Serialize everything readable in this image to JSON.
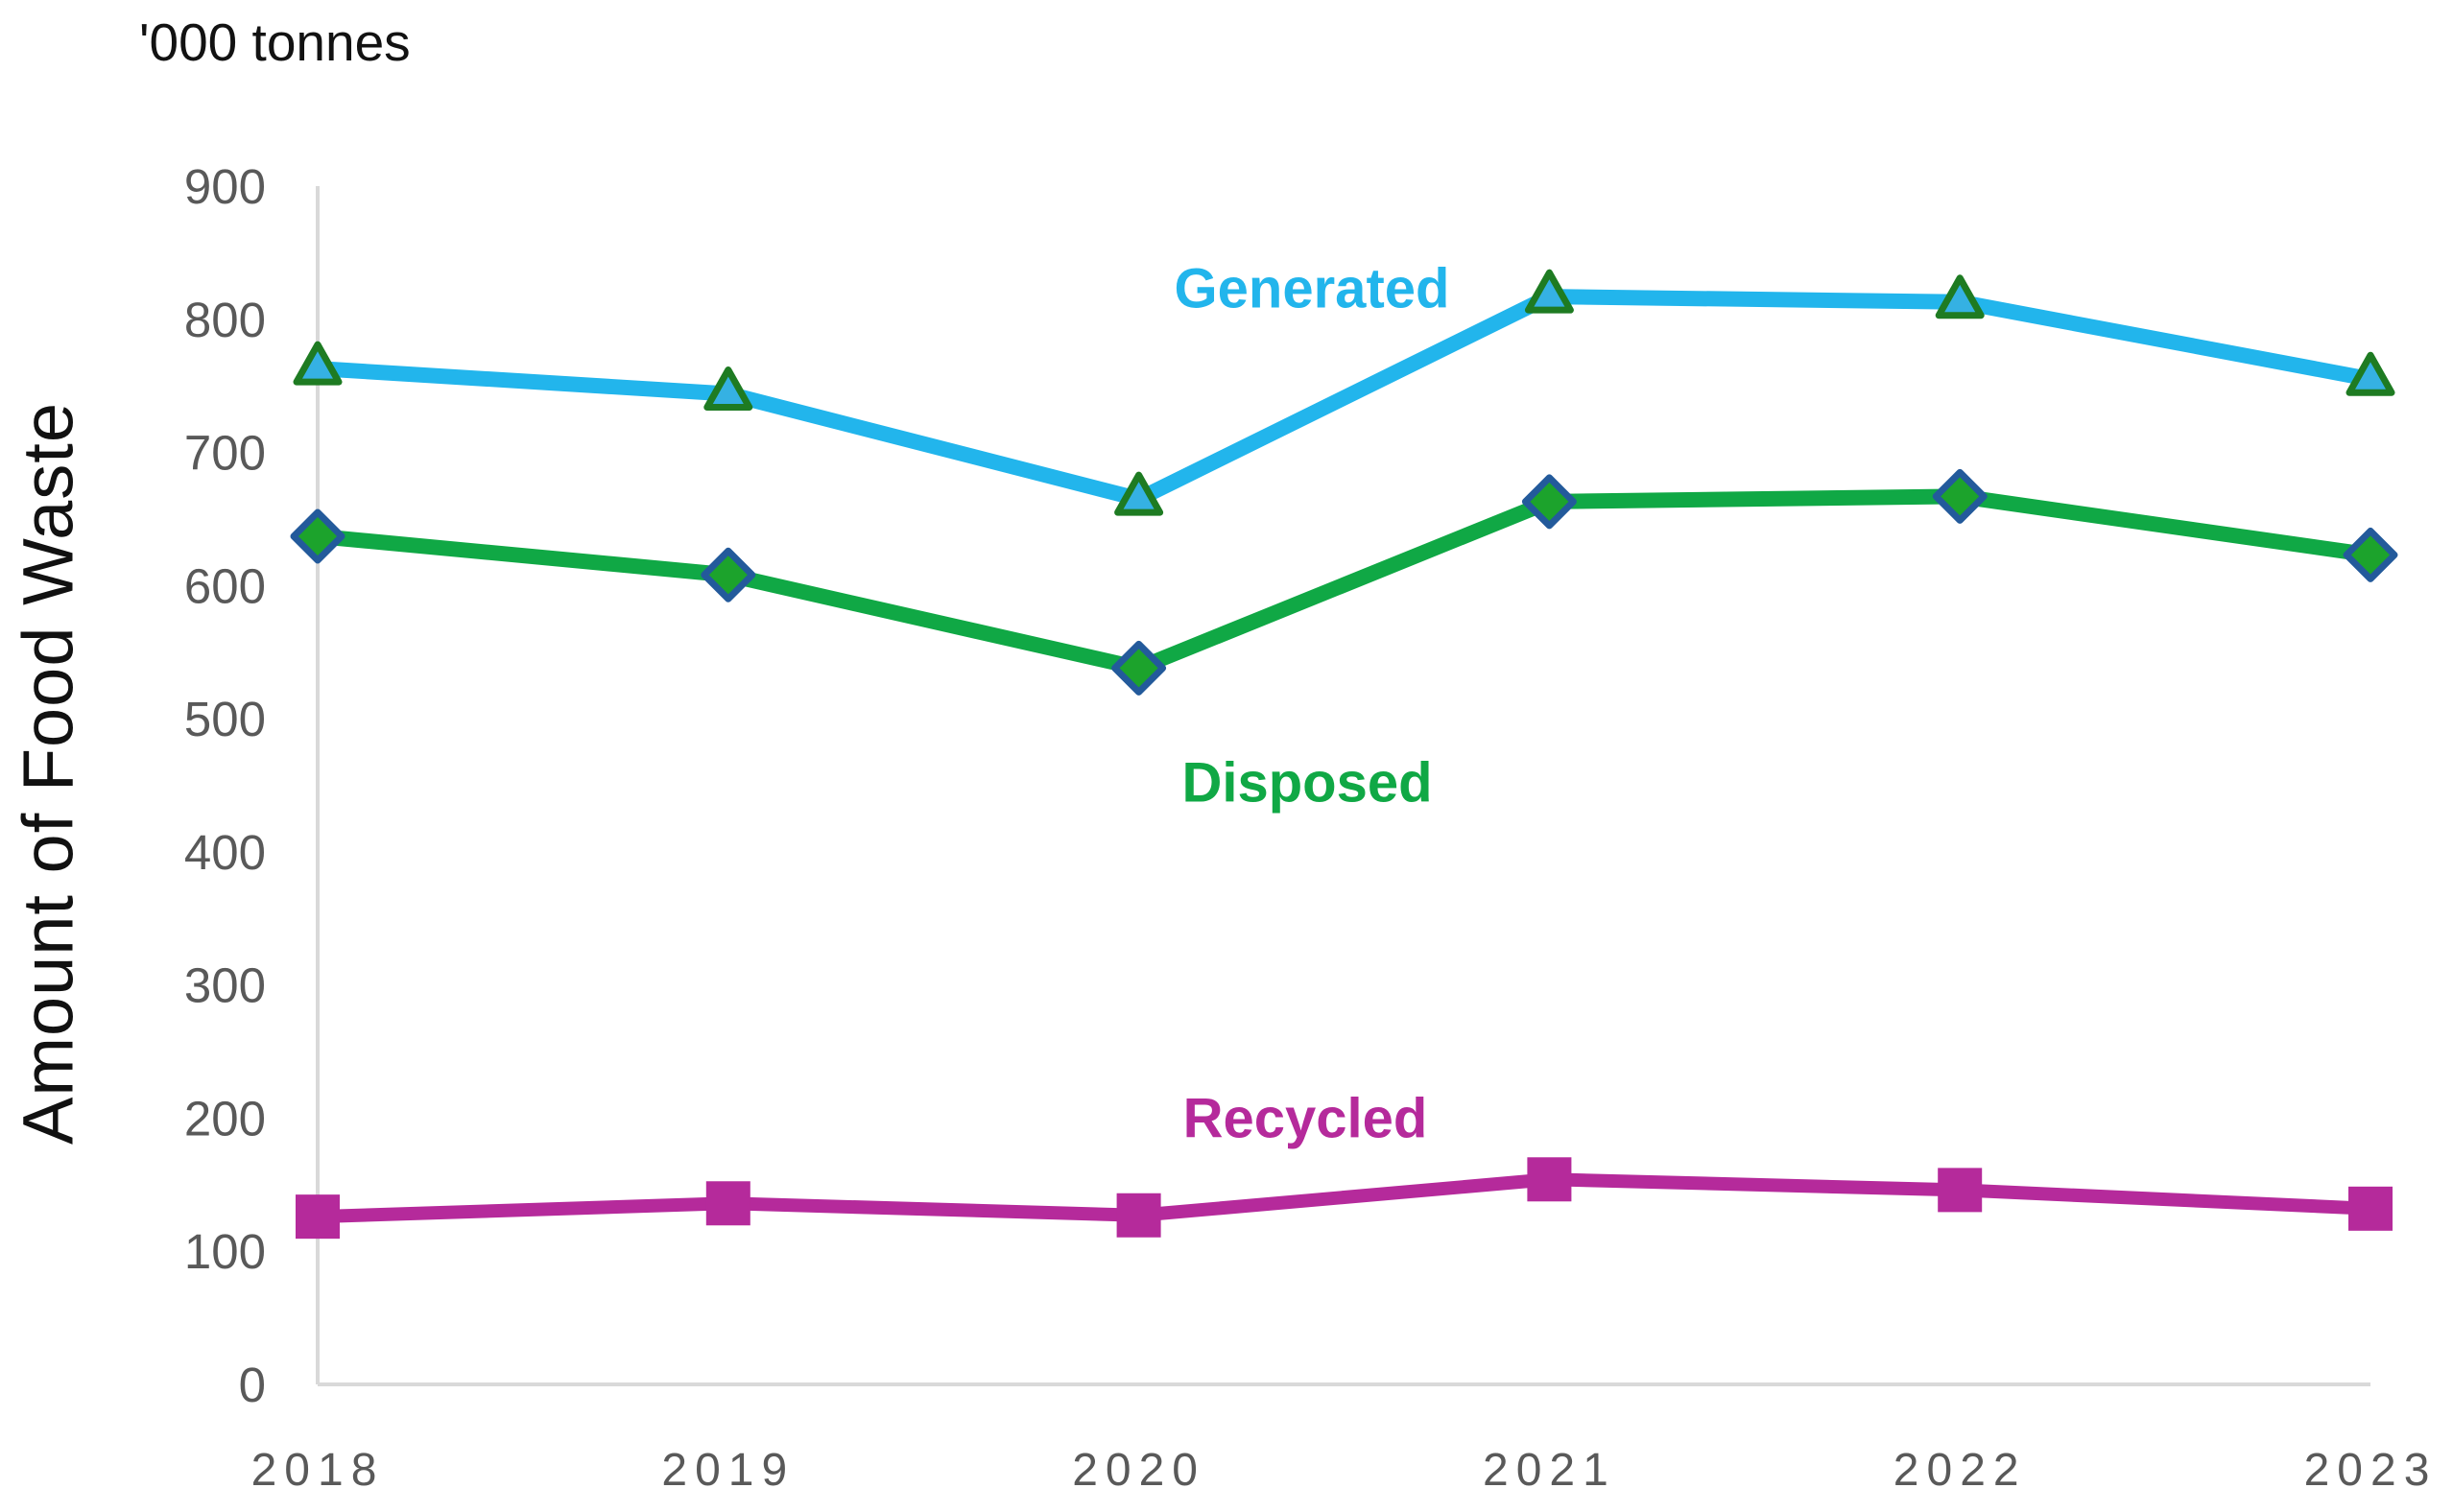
{
  "title": "'000 tonnes",
  "y_axis_title": "Amount of Food Waste",
  "chart_data": {
    "type": "line",
    "title": "'000 tonnes",
    "xlabel": "",
    "ylabel": "Amount of Food Waste",
    "categories": [
      "2018",
      "2019",
      "2020",
      "2021",
      "2022",
      "2023"
    ],
    "ylim": [
      0,
      900
    ],
    "ytick_step": 100,
    "ytick_labels": [
      "0",
      "100",
      "200",
      "300",
      "400",
      "500",
      "600",
      "700",
      "800",
      "900"
    ],
    "grid": false,
    "legend_position": "inline-labels-near-lines",
    "axis": {
      "line_color": "#d9d9d9",
      "tick_label_color": "#595959"
    },
    "series": [
      {
        "name": "Generated",
        "values": [
          763,
          744,
          665,
          817,
          813,
          755
        ],
        "line_color": "#22b5ec",
        "marker": "triangle",
        "marker_fill": "#35b1e3",
        "marker_stroke": "#1e7b22"
      },
      {
        "name": "Disposed",
        "values": [
          637,
          608,
          538,
          663,
          667,
          623
        ],
        "line_color": "#10a845",
        "marker": "diamond",
        "marker_fill": "#1ca32c",
        "marker_stroke": "#235a9b"
      },
      {
        "name": "Recycled",
        "values": [
          126,
          136,
          127,
          154,
          146,
          132
        ],
        "line_color": "#b52a9b",
        "marker": "square",
        "marker_fill": "#b52a9b",
        "marker_stroke": "#b52a9b"
      }
    ]
  }
}
